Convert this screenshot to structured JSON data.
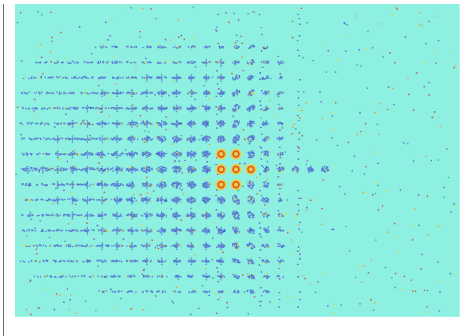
{
  "image": {
    "background_color": "#ffffff",
    "field_color": "#8ef0e0",
    "frame_line_color": "#000000"
  },
  "pattern": {
    "description_hidden": "",
    "palette": {
      "blob_main": "#5a7fd6",
      "blob_dark": "#3d5cc0",
      "ring_outer": "#e8d24a",
      "ring_inner": "#e05a2a",
      "ring_core": "#d23a2a",
      "speck_orange": "#e0a040",
      "speck_red": "#d04a30",
      "speck_yellow": "#e0d040",
      "speck_blue": "#4a6ad0",
      "speck_purple": "#9050c0",
      "speck_cyan_dark": "#3aa0b0"
    }
  }
}
